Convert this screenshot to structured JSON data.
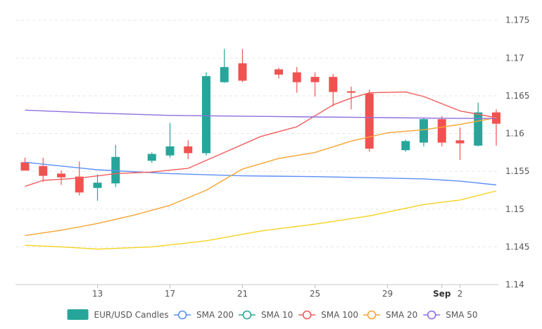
{
  "chart_data": {
    "type": "candlestick",
    "y_ticks": [
      "1.14",
      "1.145",
      "1.15",
      "1.155",
      "1.16",
      "1.165",
      "1.17",
      "1.175"
    ],
    "ylim": [
      1.14,
      1.176
    ],
    "x_ticks": [
      {
        "label": "13",
        "day": 13
      },
      {
        "label": "17",
        "day": 17
      },
      {
        "label": "21",
        "day": 21
      },
      {
        "label": "25",
        "day": 25
      },
      {
        "label": "29",
        "day": 29
      },
      {
        "label": "Sep",
        "day": 32,
        "bold": true
      },
      {
        "label": "2",
        "day": 33
      }
    ],
    "xlim": [
      8.8,
      36.3
    ],
    "grid": true,
    "candles": {
      "name": "EUR/USD Candles",
      "up_color": "#26a69a",
      "down_color": "#ef5350",
      "days": [
        9,
        10,
        11,
        12,
        13,
        14,
        16,
        17,
        18,
        19,
        20,
        21,
        23,
        24,
        25,
        26,
        27,
        28,
        30,
        31,
        32,
        33,
        34,
        35
      ],
      "open": [
        1.1562,
        1.1557,
        1.1547,
        1.1543,
        1.1528,
        1.1534,
        1.1564,
        1.1571,
        1.1583,
        1.1574,
        1.1668,
        1.1693,
        1.1685,
        1.1681,
        1.1675,
        1.1675,
        1.1656,
        1.1653,
        1.1578,
        1.1588,
        1.1619,
        1.1591,
        1.1584,
        1.1628
      ],
      "high": [
        1.1568,
        1.1568,
        1.1551,
        1.1563,
        1.1546,
        1.1585,
        1.1575,
        1.1614,
        1.1591,
        1.1681,
        1.1712,
        1.1712,
        1.1687,
        1.1688,
        1.1681,
        1.1679,
        1.1662,
        1.1658,
        1.1592,
        1.1621,
        1.1623,
        1.1608,
        1.1641,
        1.1632
      ],
      "low": [
        1.1553,
        1.1536,
        1.1532,
        1.1518,
        1.1511,
        1.1529,
        1.1561,
        1.1568,
        1.1566,
        1.1571,
        1.1667,
        1.1668,
        1.1673,
        1.1654,
        1.1649,
        1.1636,
        1.1632,
        1.1576,
        1.1576,
        1.1583,
        1.1583,
        1.1565,
        1.1583,
        1.1584
      ],
      "close": [
        1.1551,
        1.1544,
        1.1542,
        1.1522,
        1.1535,
        1.1569,
        1.1573,
        1.1583,
        1.1574,
        1.1676,
        1.1688,
        1.167,
        1.1678,
        1.1668,
        1.1668,
        1.1655,
        1.1654,
        1.158,
        1.159,
        1.1619,
        1.1588,
        1.1587,
        1.1628,
        1.1613
      ]
    },
    "series": [
      {
        "name": "SMA 200",
        "color": "#5b8ff9",
        "x": [
          9,
          13,
          17,
          21,
          25,
          29,
          31,
          33,
          35
        ],
        "y": [
          1.1562,
          1.1552,
          1.1547,
          1.1544,
          1.1543,
          1.1541,
          1.154,
          1.1537,
          1.1532
        ]
      },
      {
        "name": "SMA 10",
        "color": "#26a69a",
        "x": [],
        "y": []
      },
      {
        "name": "SMA 100",
        "color": "#f25c5c",
        "x": [
          9,
          10,
          12,
          14,
          16,
          18,
          20,
          22,
          24,
          26,
          27,
          28,
          30,
          31,
          33,
          35
        ],
        "y": [
          1.153,
          1.1538,
          1.1541,
          1.1547,
          1.1549,
          1.1554,
          1.1575,
          1.1596,
          1.1609,
          1.1638,
          1.1647,
          1.1654,
          1.1655,
          1.1649,
          1.163,
          1.1621
        ]
      },
      {
        "name": "SMA 20",
        "color": "#f7a531",
        "x": [
          9,
          11,
          13,
          15,
          17,
          19,
          21,
          23,
          25,
          27,
          29,
          31,
          33,
          35
        ],
        "y": [
          1.1465,
          1.1472,
          1.1481,
          1.1492,
          1.1505,
          1.1525,
          1.1553,
          1.1567,
          1.1575,
          1.159,
          1.1601,
          1.1605,
          1.1612,
          1.1621
        ]
      },
      {
        "name": "SMA 50",
        "color": "#8e6fde",
        "x": [
          9,
          13,
          17,
          21,
          25,
          29,
          33,
          35
        ],
        "y": [
          1.1631,
          1.1627,
          1.1624,
          1.1623,
          1.1622,
          1.1621,
          1.162,
          1.162
        ]
      },
      {
        "name": "",
        "color": "#f5d31f",
        "show_in_legend": false,
        "x": [
          9,
          11,
          13,
          16,
          19,
          22,
          25,
          28,
          31,
          33,
          35
        ],
        "y": [
          1.1452,
          1.145,
          1.1447,
          1.145,
          1.1458,
          1.1471,
          1.148,
          1.1491,
          1.1506,
          1.1512,
          1.1524
        ]
      }
    ],
    "legend": {
      "position": "bottom",
      "items": [
        {
          "label": "EUR/USD Candles",
          "kind": "box",
          "color": "#26a69a"
        },
        {
          "label": "SMA 200",
          "kind": "line",
          "color": "#5b8ff9"
        },
        {
          "label": "SMA 10",
          "kind": "line",
          "color": "#26a69a"
        },
        {
          "label": "SMA 100",
          "kind": "line",
          "color": "#f25c5c"
        },
        {
          "label": "SMA 20",
          "kind": "line",
          "color": "#f7a531"
        },
        {
          "label": "SMA 50",
          "kind": "line",
          "color": "#8e6fde"
        }
      ]
    }
  }
}
